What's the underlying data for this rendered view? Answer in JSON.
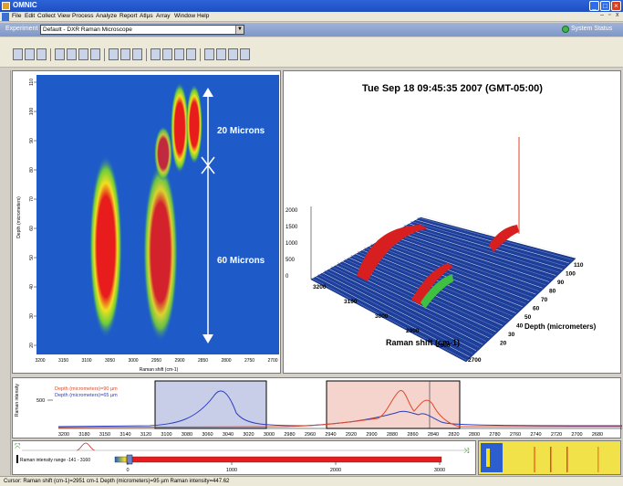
{
  "window": {
    "title": "OMNIC"
  },
  "menu": [
    "File",
    "Edit",
    "Collect",
    "View",
    "Process",
    "Analyze",
    "Report",
    "Atlµs",
    "Array",
    "Window",
    "Help"
  ],
  "experiment": {
    "label": "Experiment",
    "value": "Default - DXR Raman Microscope"
  },
  "system_status": "System Status",
  "contour": {
    "y_label": "Depth (micrometers)",
    "x_label": "Raman shift (cm-1)",
    "y_ticks": [
      "110",
      "100",
      "90",
      "80",
      "70",
      "60",
      "50",
      "40",
      "30",
      "20"
    ],
    "x_ticks": [
      "3200",
      "3150",
      "3100",
      "3050",
      "3000",
      "2950",
      "2900",
      "2850",
      "2800",
      "2750",
      "2700"
    ],
    "annotation_top": "20 Microns",
    "annotation_bottom": "60 Microns"
  },
  "view3d": {
    "timestamp": "Tue Sep 18 09:45:35 2007 (GMT-05:00)",
    "z_ticks": [
      "2000",
      "1500",
      "1000",
      "500",
      "0"
    ],
    "x_ticks": [
      "3200",
      "3100",
      "3000",
      "2900",
      "2800",
      "2700"
    ],
    "depth_ticks": [
      "110",
      "100",
      "90",
      "80",
      "70",
      "60",
      "50",
      "40",
      "30",
      "20"
    ],
    "x_label": "Raman shift (cm-1)",
    "depth_label": "Depth (micrometers)"
  },
  "spectrum": {
    "y_label": "Raman intensity",
    "y_tick": "500",
    "legend": [
      "Depth (micrometers)=90 µm",
      "Depth (micrometers)=65 µm"
    ],
    "x_ticks": [
      "3200",
      "3180",
      "3150",
      "3140",
      "3120",
      "3100",
      "3080",
      "3060",
      "3040",
      "3020",
      "3000",
      "2980",
      "2960",
      "2940",
      "2920",
      "2900",
      "2880",
      "2860",
      "2840",
      "2820",
      "2800",
      "2780",
      "2760",
      "2740",
      "2720",
      "2700",
      "2680",
      "2660"
    ]
  },
  "slider": {
    "range_text": "Raman intensity range -141 - 3160",
    "ticks": [
      "0",
      "1000",
      "2000",
      "3000"
    ]
  },
  "status_bar": "Cursor: Raman shift (cm-1)=2951 cm-1  Depth (micrometers)=95 µm  Raman intensity=447.62",
  "colors": {
    "title_bar": "#1f4fbf",
    "contour_bg": "#1e5bc8",
    "hot": "#e82020",
    "mid": "#7ed33a",
    "warm": "#f0e020"
  }
}
